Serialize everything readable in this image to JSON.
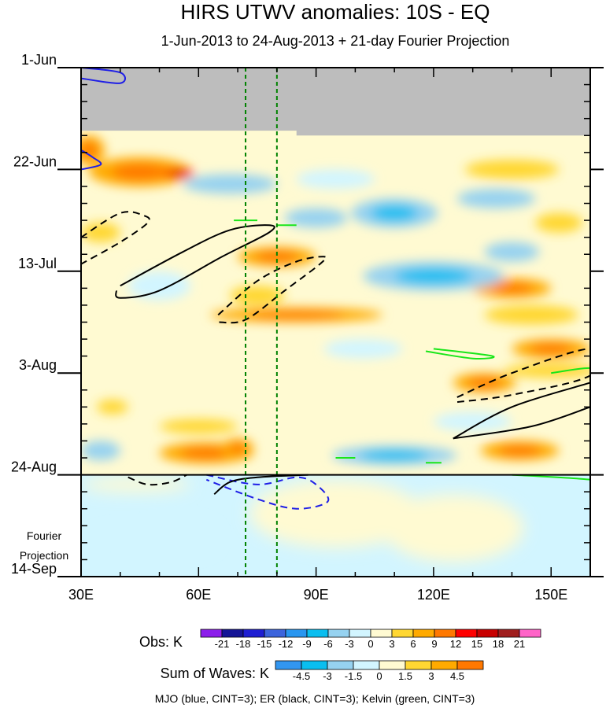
{
  "chart_data": {
    "type": "heatmap",
    "title": "HIRS UTWV anomalies: 10S - EQ",
    "subtitle": "1-Jun-2013 to 24-Aug-2013 + 21-day Fourier Projection",
    "x": {
      "min": 30,
      "max": 160,
      "ticks": [
        {
          "value": 30,
          "label": "30E"
        },
        {
          "value": 60,
          "label": "60E"
        },
        {
          "value": 90,
          "label": "90E"
        },
        {
          "value": 120,
          "label": "120E"
        },
        {
          "value": 150,
          "label": "150E"
        }
      ]
    },
    "y": {
      "min_day": 0,
      "max_day": 105,
      "ticks": [
        {
          "day": 0,
          "label": "1-Jun"
        },
        {
          "day": 21,
          "label": "22-Jun"
        },
        {
          "day": 42,
          "label": "13-Jul"
        },
        {
          "day": 63,
          "label": "3-Aug"
        },
        {
          "day": 84,
          "label": "24-Aug"
        },
        {
          "day": 105,
          "label": "14-Sep"
        }
      ]
    },
    "missing_data_end_day": 13,
    "missing_data_end_day_partial": 14,
    "missing_partial_from_lon": 85,
    "observation_end_day": 84,
    "reference_lines_lon": [
      72,
      80
    ],
    "projection_label": [
      "Fourier",
      "Projection"
    ],
    "anomaly_blobs": [
      {
        "lon": 45,
        "day": 21.5,
        "rlon": 13,
        "rday": 3,
        "value": 7
      },
      {
        "lon": 55,
        "day": 21.8,
        "rlon": 4,
        "rday": 1,
        "value": 14
      },
      {
        "lon": 32,
        "day": 17,
        "rlon": 4,
        "rday": 3,
        "value": 6
      },
      {
        "lon": 35,
        "day": 34,
        "rlon": 5,
        "rday": 2,
        "value": 5
      },
      {
        "lon": 140,
        "day": 21,
        "rlon": 12,
        "rday": 2,
        "value": 5
      },
      {
        "lon": 152,
        "day": 32,
        "rlon": 6,
        "rday": 2,
        "value": 4
      },
      {
        "lon": 80,
        "day": 39,
        "rlon": 10,
        "rday": 2,
        "value": 6
      },
      {
        "lon": 75,
        "day": 47,
        "rlon": 7,
        "rday": 2,
        "value": 5
      },
      {
        "lon": 85,
        "day": 51,
        "rlon": 22,
        "rday": 1.5,
        "value": 7
      },
      {
        "lon": 140,
        "day": 45.5,
        "rlon": 10,
        "rday": 2,
        "value": 6
      },
      {
        "lon": 145,
        "day": 51,
        "rlon": 12,
        "rday": 2,
        "value": 4
      },
      {
        "lon": 150,
        "day": 58,
        "rlon": 10,
        "rday": 2,
        "value": 6
      },
      {
        "lon": 133,
        "day": 65,
        "rlon": 8,
        "rday": 2,
        "value": 6
      },
      {
        "lon": 150,
        "day": 62.5,
        "rlon": 12,
        "rday": 1.5,
        "value": 5
      },
      {
        "lon": 60,
        "day": 74,
        "rlon": 10,
        "rday": 1.5,
        "value": 5
      },
      {
        "lon": 62,
        "day": 79.5,
        "rlon": 12,
        "rday": 2.2,
        "value": 7
      },
      {
        "lon": 70,
        "day": 78.5,
        "rlon": 4,
        "rday": 2,
        "value": 8
      },
      {
        "lon": 142,
        "day": 79,
        "rlon": 10,
        "rday": 2,
        "value": 6
      },
      {
        "lon": 38,
        "day": 70,
        "rlon": 4,
        "rday": 1.5,
        "value": 4
      },
      {
        "lon": 86,
        "day": 88,
        "rlon": 6,
        "rday": 2,
        "value": 4
      },
      {
        "lon": 95,
        "day": 92,
        "rlon": 22,
        "rday": 7,
        "value": 1.6
      },
      {
        "lon": 68,
        "day": 24,
        "rlon": 12,
        "rday": 2,
        "value": -4
      },
      {
        "lon": 95,
        "day": 23,
        "rlon": 10,
        "rday": 2,
        "value": -3
      },
      {
        "lon": 110,
        "day": 30,
        "rlon": 11,
        "rday": 3,
        "value": -6
      },
      {
        "lon": 90,
        "day": 31,
        "rlon": 8,
        "rday": 2,
        "value": -4
      },
      {
        "lon": 136,
        "day": 27,
        "rlon": 10,
        "rday": 2,
        "value": -4
      },
      {
        "lon": 120,
        "day": 43,
        "rlon": 18,
        "rday": 3,
        "value": -6
      },
      {
        "lon": 140,
        "day": 38,
        "rlon": 7,
        "rday": 2,
        "value": -4
      },
      {
        "lon": 50,
        "day": 45,
        "rlon": 8,
        "rday": 3,
        "value": -3
      },
      {
        "lon": 102,
        "day": 58,
        "rlon": 10,
        "rday": 2,
        "value": -3
      },
      {
        "lon": 110,
        "day": 80,
        "rlon": 16,
        "rday": 2,
        "value": -6
      },
      {
        "lon": 35,
        "day": 79,
        "rlon": 5,
        "rday": 2,
        "value": -5
      },
      {
        "lon": 130,
        "day": 73,
        "rlon": 10,
        "rday": 2,
        "value": -3
      },
      {
        "lon": 55,
        "day": 97,
        "rlon": 9,
        "rday": 3,
        "value": -1.6
      },
      {
        "lon": 44,
        "day": 86,
        "rlon": 14,
        "rday": 1.5,
        "value": 1.6
      },
      {
        "lon": 125,
        "day": 95,
        "rlon": 18,
        "rday": 7,
        "value": 0.8
      },
      {
        "lon": 40,
        "day": 100,
        "rlon": 10,
        "rday": 4,
        "value": -0.8
      }
    ],
    "wave_contours": [
      {
        "wave": "MJO",
        "color": "#1e1ee6",
        "dashed": false,
        "points": [
          [
            30,
            0
          ],
          [
            40,
            1
          ],
          [
            40,
            3.2
          ],
          [
            30,
            2.2
          ]
        ]
      },
      {
        "wave": "MJO",
        "color": "#1e1ee6",
        "dashed": false,
        "points": [
          [
            30,
            17
          ],
          [
            33,
            18.5
          ],
          [
            35,
            20
          ],
          [
            30,
            21
          ]
        ]
      },
      {
        "wave": "MJO",
        "color": "#1e1ee6",
        "dashed": true,
        "points": [
          [
            62,
            84
          ],
          [
            75,
            86
          ],
          [
            85,
            84.5
          ],
          [
            90,
            86
          ],
          [
            93,
            89.5
          ],
          [
            85,
            91
          ],
          [
            75,
            89
          ],
          [
            62,
            85
          ]
        ]
      },
      {
        "wave": "ER",
        "color": "#000000",
        "dashed": true,
        "points": [
          [
            30,
            35
          ],
          [
            40,
            30
          ],
          [
            46,
            30.5
          ],
          [
            47,
            32
          ],
          [
            40,
            36
          ],
          [
            30,
            40.5
          ]
        ]
      },
      {
        "wave": "ER",
        "color": "#000000",
        "dashed": false,
        "points": [
          [
            40,
            45
          ],
          [
            56,
            38
          ],
          [
            68,
            33.5
          ],
          [
            78,
            32.5
          ],
          [
            78,
            34
          ],
          [
            66,
            39
          ],
          [
            50,
            46
          ],
          [
            40,
            47.5
          ],
          [
            39,
            46
          ]
        ]
      },
      {
        "wave": "ER",
        "color": "#000000",
        "dashed": true,
        "points": [
          [
            65,
            51
          ],
          [
            75,
            44
          ],
          [
            85,
            40
          ],
          [
            92,
            39
          ],
          [
            91,
            40.5
          ],
          [
            82,
            46
          ],
          [
            72,
            52
          ],
          [
            65,
            52.5
          ]
        ]
      },
      {
        "wave": "ER",
        "color": "#000000",
        "dashed": true,
        "points": [
          [
            126,
            68
          ],
          [
            140,
            63
          ],
          [
            160,
            58
          ],
          [
            160,
            63.5
          ],
          [
            140,
            67.5
          ],
          [
            126,
            69
          ]
        ]
      },
      {
        "wave": "ER",
        "color": "#000000",
        "dashed": false,
        "points": [
          [
            125,
            76.5
          ],
          [
            140,
            70
          ],
          [
            160,
            65
          ]
        ]
      },
      {
        "wave": "ER",
        "color": "#000000",
        "dashed": false,
        "points": [
          [
            125,
            76.5
          ],
          [
            145,
            74
          ],
          [
            160,
            70
          ]
        ]
      },
      {
        "wave": "ER",
        "color": "#000000",
        "dashed": true,
        "points": [
          [
            42,
            84.5
          ],
          [
            47,
            86
          ],
          [
            53,
            85.5
          ],
          [
            57,
            84
          ]
        ]
      },
      {
        "wave": "ER",
        "color": "#000000",
        "dashed": false,
        "points": [
          [
            64,
            88
          ],
          [
            68,
            85.5
          ],
          [
            75,
            84.5
          ],
          [
            88,
            84
          ]
        ]
      },
      {
        "wave": "Kelvin",
        "color": "#19e619",
        "dashed": false,
        "points": [
          [
            69,
            31.5
          ],
          [
            75,
            31.5
          ]
        ]
      },
      {
        "wave": "Kelvin",
        "color": "#19e619",
        "dashed": false,
        "points": [
          [
            80,
            32.5
          ],
          [
            85,
            32.5
          ]
        ]
      },
      {
        "wave": "Kelvin",
        "color": "#19e619",
        "dashed": false,
        "points": [
          [
            120,
            58
          ],
          [
            135,
            59.5
          ],
          [
            130,
            60
          ],
          [
            118,
            58.5
          ]
        ]
      },
      {
        "wave": "Kelvin",
        "color": "#19e619",
        "dashed": false,
        "points": [
          [
            150,
            63
          ],
          [
            160,
            62
          ],
          [
            160,
            64
          ]
        ]
      },
      {
        "wave": "Kelvin",
        "color": "#19e619",
        "dashed": false,
        "points": [
          [
            140,
            84
          ],
          [
            160,
            85
          ],
          [
            160,
            86
          ]
        ]
      },
      {
        "wave": "Kelvin",
        "color": "#19e619",
        "dashed": false,
        "points": [
          [
            95,
            80.5
          ],
          [
            100,
            80.5
          ]
        ]
      },
      {
        "wave": "Kelvin",
        "color": "#19e619",
        "dashed": false,
        "points": [
          [
            118,
            81.5
          ],
          [
            122,
            81.5
          ]
        ]
      }
    ],
    "obs_colorbar": {
      "label": "Obs: K",
      "levels": [
        -21,
        -18,
        -15,
        -12,
        -9,
        -6,
        -3,
        0,
        3,
        6,
        9,
        12,
        15,
        18,
        21
      ],
      "colors": [
        "#8c1eeb",
        "#141496",
        "#1e1ed2",
        "#3c64dc",
        "#2896f0",
        "#0abef0",
        "#96d2f0",
        "#d2f5ff",
        "#fffad2",
        "#ffd732",
        "#ffaa00",
        "#ff7800",
        "#ff0000",
        "#c80000",
        "#a01e1e",
        "#ff64c8"
      ]
    },
    "waves_colorbar": {
      "label": "Sum of Waves: K",
      "levels": [
        -4.5,
        -3,
        -1.5,
        0,
        1.5,
        3,
        4.5
      ],
      "colors": [
        "#3296f0",
        "#0abef0",
        "#96d2f0",
        "#d2f5ff",
        "#fffad2",
        "#ffd732",
        "#ffaa00",
        "#ff7800"
      ]
    },
    "footnote": "MJO (blue, CINT=3); ER (black, CINT=3); Kelvin (green, CINT=3)"
  }
}
